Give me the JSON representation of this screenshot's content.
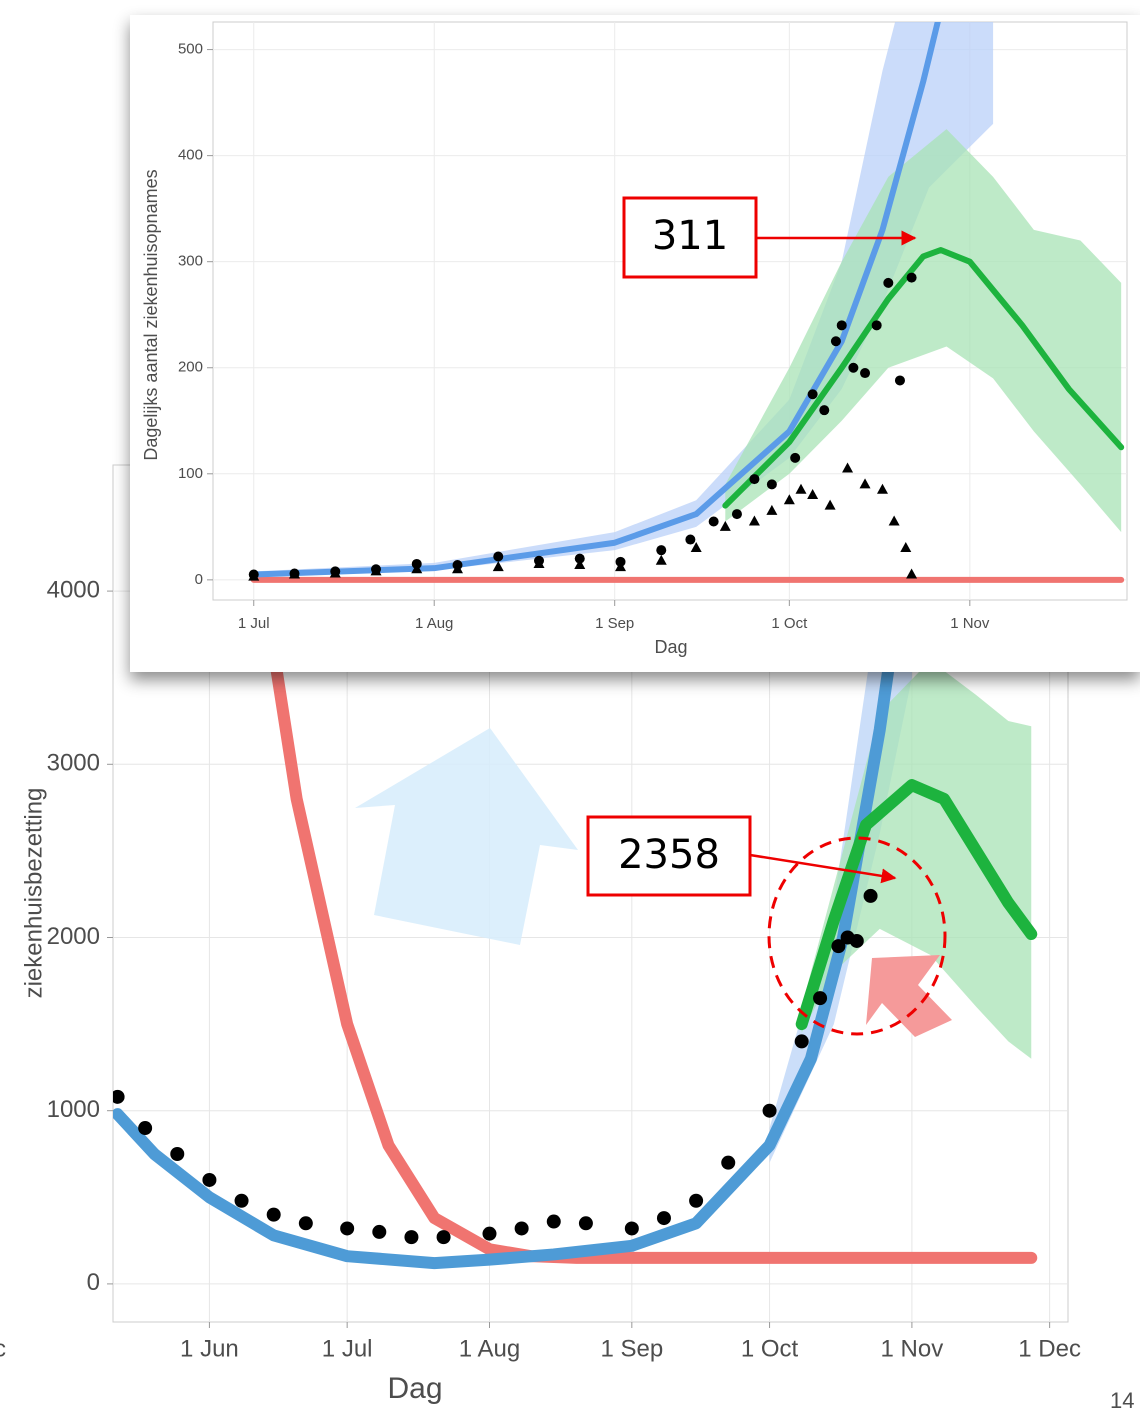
{
  "chart_data": [
    {
      "type": "line",
      "ylabel": "ziekenhuisbezetting",
      "xlabel": "Dag",
      "annotation": "2358",
      "grid": true,
      "xlim": [
        "11 May",
        "5 Dec"
      ],
      "xticks": [
        "1 Jun",
        "1 Jul",
        "1 Aug",
        "1 Sep",
        "1 Oct",
        "1 Nov",
        "1 Dec"
      ],
      "ylim": [
        -220,
        4728
      ],
      "yticks": [
        0,
        1000,
        2000,
        3000,
        4000
      ],
      "series": [
        {
          "kind": "band",
          "color": "#b9d3f7",
          "x": [
            "1 Oct",
            "15 Oct",
            "25 Oct",
            "1 Nov"
          ],
          "lower": [
            700,
            1500,
            2600,
            3500
          ],
          "upper": [
            900,
            2200,
            4000,
            5500
          ]
        },
        {
          "kind": "band",
          "color": "#a8e3b6",
          "x": [
            "8 Oct",
            "15 Oct",
            "25 Oct",
            "5 Nov",
            "15 Nov",
            "22 Nov",
            "27 Nov"
          ],
          "lower": [
            1450,
            1800,
            2050,
            1900,
            1600,
            1400,
            1300
          ],
          "upper": [
            1600,
            2300,
            3300,
            3600,
            3400,
            3250,
            3220
          ]
        },
        {
          "kind": "line",
          "color": "#f07470",
          "x": [
            "10 Jun",
            "20 Jun",
            "1 Jul",
            "10 Jul",
            "20 Jul",
            "1 Aug",
            "10 Aug",
            "20 Aug",
            "27 Nov"
          ],
          "values": [
            4500,
            2800,
            1500,
            800,
            380,
            200,
            160,
            150,
            150
          ]
        },
        {
          "kind": "line",
          "color": "#4e9bd6",
          "x": [
            "12 May",
            "20 May",
            "1 Jun",
            "15 Jun",
            "1 Jul",
            "20 Jul",
            "1 Aug",
            "15 Aug",
            "1 Sep",
            "15 Sep",
            "1 Oct",
            "10 Oct",
            "17 Oct",
            "25 Oct",
            "1 Nov"
          ],
          "values": [
            980,
            750,
            500,
            280,
            160,
            120,
            140,
            170,
            220,
            350,
            800,
            1300,
            2000,
            3200,
            4500
          ]
        },
        {
          "kind": "line",
          "color": "#1db33e",
          "x": [
            "8 Oct",
            "15 Oct",
            "22 Oct",
            "1 Nov",
            "8 Nov",
            "15 Nov",
            "22 Nov",
            "27 Nov"
          ],
          "values": [
            1500,
            2100,
            2650,
            2880,
            2800,
            2500,
            2200,
            2020
          ]
        },
        {
          "kind": "points",
          "marker": "circle",
          "color": "#000000",
          "x": [
            "12 May",
            "18 May",
            "25 May",
            "1 Jun",
            "8 Jun",
            "15 Jun",
            "22 Jun",
            "1 Jul",
            "8 Jul",
            "15 Jul",
            "22 Jul",
            "1 Aug",
            "8 Aug",
            "15 Aug",
            "22 Aug",
            "1 Sep",
            "8 Sep",
            "15 Sep",
            "22 Sep",
            "1 Oct",
            "8 Oct",
            "12 Oct",
            "16 Oct",
            "18 Oct",
            "20 Oct",
            "23 Oct"
          ],
          "values": [
            1080,
            900,
            750,
            600,
            480,
            400,
            350,
            320,
            300,
            270,
            270,
            290,
            320,
            360,
            350,
            320,
            380,
            480,
            700,
            1000,
            1400,
            1650,
            1950,
            2000,
            1980,
            2240
          ]
        }
      ]
    },
    {
      "type": "line",
      "ylabel": "Dagelijks aantal ziekenhuisopnames",
      "xlabel": "Dag",
      "annotation": "311",
      "grid": true,
      "xlim": [
        "24 Jun",
        "28 Nov"
      ],
      "xticks": [
        "1 Jul",
        "1 Aug",
        "1 Sep",
        "1 Oct",
        "1 Nov"
      ],
      "ylim": [
        -19,
        526
      ],
      "yticks": [
        0,
        100,
        200,
        300,
        400,
        500
      ],
      "series": [
        {
          "kind": "band",
          "color": "#b9d0f8",
          "x": [
            "1 Jul",
            "1 Aug",
            "1 Sep",
            "15 Sep",
            "1 Oct",
            "10 Oct",
            "17 Oct",
            "25 Oct",
            "5 Nov"
          ],
          "lower": [
            3,
            9,
            28,
            50,
            115,
            180,
            260,
            370,
            430
          ],
          "upper": [
            8,
            16,
            45,
            75,
            170,
            300,
            480,
            650,
            900
          ]
        },
        {
          "kind": "band",
          "color": "#a8e3b6",
          "x": [
            "20 Sep",
            "1 Oct",
            "10 Oct",
            "18 Oct",
            "28 Oct",
            "5 Nov",
            "12 Nov",
            "20 Nov",
            "27 Nov"
          ],
          "lower": [
            55,
            100,
            150,
            200,
            220,
            190,
            140,
            90,
            45
          ],
          "upper": [
            90,
            200,
            300,
            380,
            425,
            380,
            330,
            320,
            280
          ]
        },
        {
          "kind": "line",
          "color": "#f07470",
          "x": [
            "1 Jul",
            "27 Nov"
          ],
          "values": [
            0,
            0
          ]
        },
        {
          "kind": "line",
          "color": "#5b9be8",
          "x": [
            "1 Jul",
            "1 Aug",
            "1 Sep",
            "15 Sep",
            "1 Oct",
            "10 Oct",
            "17 Oct",
            "24 Oct",
            "28 Oct"
          ],
          "values": [
            5,
            11,
            35,
            62,
            140,
            225,
            330,
            470,
            560
          ]
        },
        {
          "kind": "line",
          "color": "#1db33e",
          "x": [
            "20 Sep",
            "1 Oct",
            "10 Oct",
            "18 Oct",
            "24 Oct",
            "27 Oct",
            "1 Nov",
            "10 Nov",
            "18 Nov",
            "27 Nov"
          ],
          "values": [
            70,
            130,
            200,
            265,
            305,
            311,
            300,
            240,
            180,
            125
          ]
        },
        {
          "kind": "points",
          "marker": "circle",
          "color": "#000000",
          "x": [
            "1 Jul",
            "8 Jul",
            "15 Jul",
            "22 Jul",
            "29 Jul",
            "5 Aug",
            "12 Aug",
            "19 Aug",
            "26 Aug",
            "2 Sep",
            "9 Sep",
            "14 Sep",
            "18 Sep",
            "22 Sep",
            "25 Sep",
            "28 Sep",
            "2 Oct",
            "5 Oct",
            "7 Oct",
            "9 Oct",
            "10 Oct",
            "12 Oct",
            "14 Oct",
            "16 Oct",
            "18 Oct",
            "20 Oct",
            "22 Oct"
          ],
          "values": [
            5,
            6,
            8,
            10,
            15,
            14,
            22,
            18,
            20,
            17,
            28,
            38,
            55,
            62,
            95,
            90,
            115,
            175,
            160,
            225,
            240,
            200,
            195,
            240,
            280,
            188,
            285
          ]
        },
        {
          "kind": "points",
          "marker": "triangle",
          "color": "#000000",
          "x": [
            "1 Jul",
            "8 Jul",
            "15 Jul",
            "22 Jul",
            "29 Jul",
            "5 Aug",
            "12 Aug",
            "19 Aug",
            "26 Aug",
            "2 Sep",
            "9 Sep",
            "15 Sep",
            "20 Sep",
            "25 Sep",
            "28 Sep",
            "1 Oct",
            "3 Oct",
            "5 Oct",
            "8 Oct",
            "11 Oct",
            "14 Oct",
            "17 Oct",
            "19 Oct",
            "21 Oct",
            "22 Oct"
          ],
          "values": [
            3,
            5,
            6,
            8,
            10,
            10,
            12,
            15,
            14,
            12,
            18,
            30,
            50,
            55,
            65,
            75,
            85,
            80,
            70,
            105,
            90,
            85,
            55,
            30,
            5
          ]
        }
      ]
    }
  ],
  "slide": {
    "page_number": "14",
    "cropped_label": "c"
  }
}
